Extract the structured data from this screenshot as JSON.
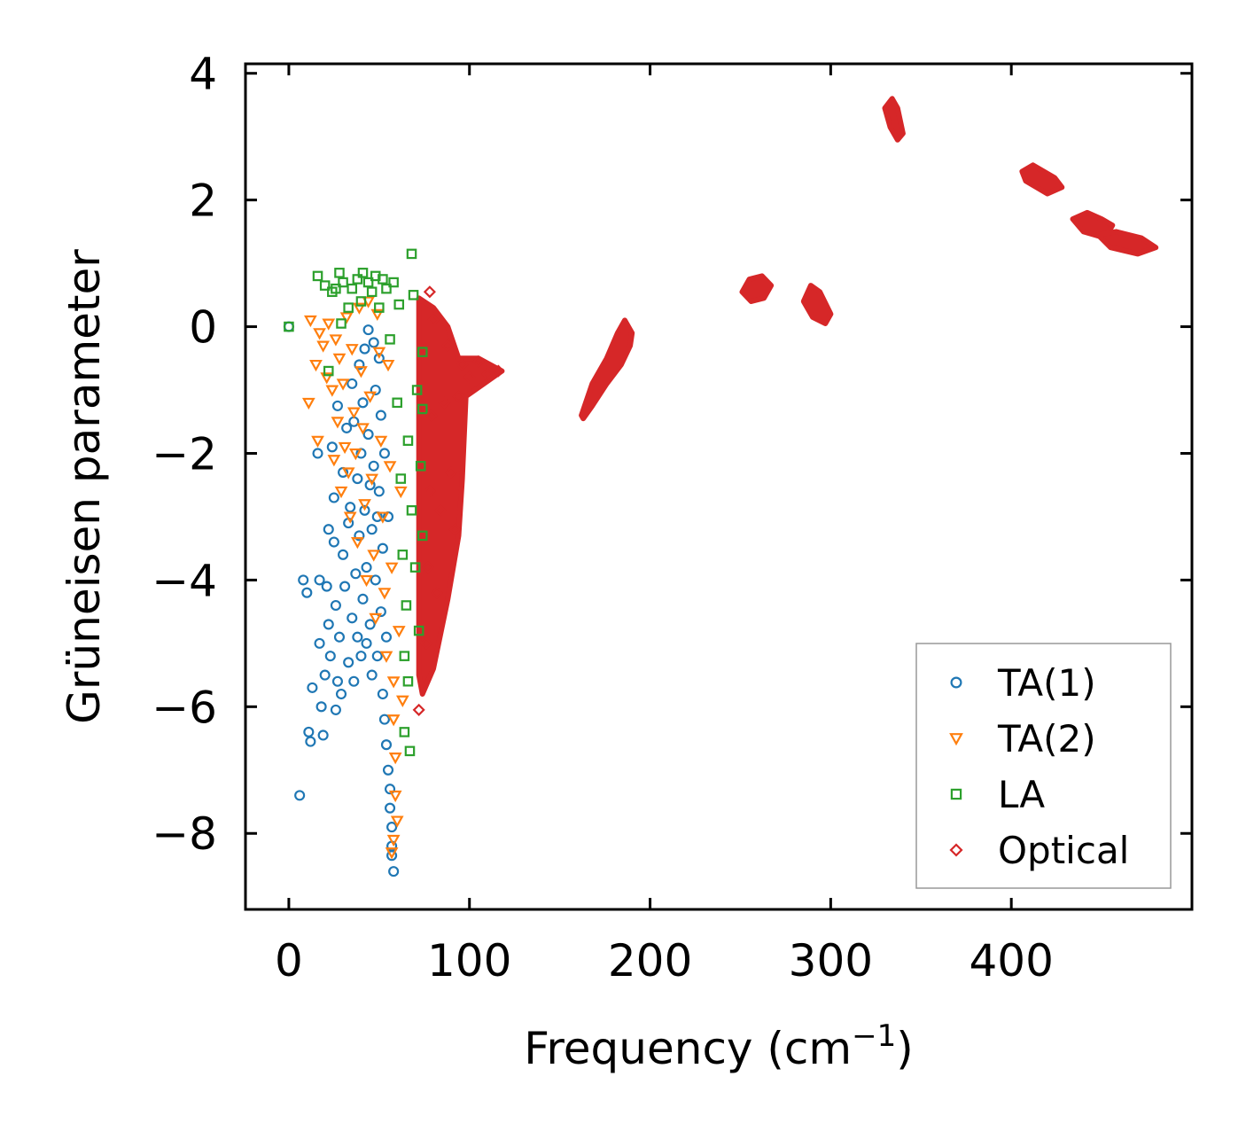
{
  "chart_data": {
    "type": "scatter",
    "title": "",
    "xlabel": "Frequency (cm",
    "xlabel_sup": "−1",
    "xlabel_tail": ")",
    "ylabel": "Grüneisen parameter",
    "xlim": [
      -24,
      500
    ],
    "ylim": [
      -9.2,
      4.15
    ],
    "xticks": [
      0,
      100,
      200,
      300,
      400
    ],
    "xtick_labels": [
      "0",
      "100",
      "200",
      "300",
      "400"
    ],
    "yticks": [
      4,
      2,
      0,
      -2,
      -4,
      -6,
      -8
    ],
    "ytick_labels": [
      "4",
      "2",
      "0",
      "−2",
      "−4",
      "−6",
      "−8"
    ],
    "legend_position": "lower-right",
    "series": [
      {
        "name": "TA(1)",
        "marker": "circle",
        "color": "#1f77b4",
        "points": [
          [
            0,
            0
          ],
          [
            6,
            -7.4
          ],
          [
            8,
            -4.0
          ],
          [
            10,
            -4.2
          ],
          [
            11,
            -6.4
          ],
          [
            12,
            -6.55
          ],
          [
            13,
            -5.7
          ],
          [
            16,
            -2.0
          ],
          [
            17,
            -4.0
          ],
          [
            17,
            -5.0
          ],
          [
            18,
            -6.0
          ],
          [
            19,
            -6.45
          ],
          [
            20,
            -5.5
          ],
          [
            21,
            -4.1
          ],
          [
            22,
            -3.2
          ],
          [
            22,
            -4.7
          ],
          [
            23,
            -5.2
          ],
          [
            24,
            -1.9
          ],
          [
            25,
            -2.7
          ],
          [
            25,
            -3.4
          ],
          [
            26,
            -4.4
          ],
          [
            26,
            -6.05
          ],
          [
            27,
            -1.25
          ],
          [
            27,
            -5.6
          ],
          [
            28,
            -4.9
          ],
          [
            29,
            -5.8
          ],
          [
            30,
            -2.3
          ],
          [
            30,
            -3.6
          ],
          [
            31,
            -4.1
          ],
          [
            32,
            -1.6
          ],
          [
            33,
            -3.1
          ],
          [
            33,
            -5.3
          ],
          [
            34,
            -2.85
          ],
          [
            35,
            -0.9
          ],
          [
            35,
            -4.6
          ],
          [
            36,
            -1.5
          ],
          [
            36,
            -5.6
          ],
          [
            37,
            -3.9
          ],
          [
            38,
            -2.4
          ],
          [
            38,
            -4.9
          ],
          [
            39,
            -0.6
          ],
          [
            39,
            -3.3
          ],
          [
            40,
            -2.0
          ],
          [
            40,
            -5.2
          ],
          [
            41,
            -1.2
          ],
          [
            41,
            -4.3
          ],
          [
            42,
            -0.35
          ],
          [
            42,
            -2.9
          ],
          [
            43,
            -3.8
          ],
          [
            43,
            -5.0
          ],
          [
            44,
            -0.05
          ],
          [
            44,
            -1.7
          ],
          [
            45,
            -2.5
          ],
          [
            45,
            -4.7
          ],
          [
            46,
            -3.2
          ],
          [
            46,
            -5.5
          ],
          [
            47,
            -0.25
          ],
          [
            47,
            -2.2
          ],
          [
            48,
            -4.0
          ],
          [
            48,
            -1.0
          ],
          [
            49,
            -3.0
          ],
          [
            49,
            -5.2
          ],
          [
            50,
            -0.5
          ],
          [
            50,
            -2.6
          ],
          [
            51,
            -4.5
          ],
          [
            51,
            -1.4
          ],
          [
            52,
            -3.5
          ],
          [
            52,
            -5.8
          ],
          [
            53,
            -2.0
          ],
          [
            53,
            -6.2
          ],
          [
            54,
            -4.9
          ],
          [
            54,
            -6.6
          ],
          [
            55,
            -3.0
          ],
          [
            55,
            -7.0
          ],
          [
            56,
            -7.3
          ],
          [
            56,
            -7.6
          ],
          [
            57,
            -7.9
          ],
          [
            57,
            -8.2
          ],
          [
            57,
            -8.35
          ],
          [
            58,
            -8.6
          ]
        ]
      },
      {
        "name": "TA(2)",
        "marker": "triangle-down",
        "color": "#ff7f0e",
        "points": [
          [
            11,
            -1.2
          ],
          [
            12,
            0.1
          ],
          [
            15,
            -0.6
          ],
          [
            16,
            -1.8
          ],
          [
            17,
            -0.1
          ],
          [
            19,
            -0.3
          ],
          [
            21,
            -0.8
          ],
          [
            22,
            0.05
          ],
          [
            24,
            -1.0
          ],
          [
            25,
            -2.1
          ],
          [
            26,
            -0.2
          ],
          [
            27,
            -1.5
          ],
          [
            28,
            -0.5
          ],
          [
            29,
            -2.6
          ],
          [
            30,
            -0.9
          ],
          [
            31,
            -1.9
          ],
          [
            32,
            0.15
          ],
          [
            33,
            -2.3
          ],
          [
            34,
            -3.0
          ],
          [
            35,
            -0.35
          ],
          [
            36,
            -1.35
          ],
          [
            37,
            -2.0
          ],
          [
            38,
            -3.4
          ],
          [
            39,
            0.3
          ],
          [
            40,
            -0.7
          ],
          [
            41,
            -1.6
          ],
          [
            42,
            -2.8
          ],
          [
            43,
            -4.0
          ],
          [
            44,
            0.4
          ],
          [
            45,
            -1.1
          ],
          [
            46,
            -2.4
          ],
          [
            47,
            -3.6
          ],
          [
            48,
            -4.6
          ],
          [
            49,
            0.2
          ],
          [
            50,
            -0.4
          ],
          [
            51,
            -1.8
          ],
          [
            52,
            -3.0
          ],
          [
            53,
            -4.2
          ],
          [
            54,
            -5.2
          ],
          [
            55,
            -0.6
          ],
          [
            56,
            -2.2
          ],
          [
            57,
            -3.8
          ],
          [
            58,
            -5.6
          ],
          [
            58,
            -6.2
          ],
          [
            59,
            -6.8
          ],
          [
            59,
            -7.4
          ],
          [
            60,
            -7.8
          ],
          [
            58,
            -8.1
          ],
          [
            57,
            -8.3
          ],
          [
            61,
            -4.8
          ],
          [
            62,
            -2.6
          ],
          [
            63,
            -5.9
          ]
        ]
      },
      {
        "name": "LA",
        "marker": "square",
        "color": "#2ca02c",
        "points": [
          [
            0,
            0
          ],
          [
            16,
            0.8
          ],
          [
            20,
            0.65
          ],
          [
            22,
            -0.7
          ],
          [
            24,
            0.55
          ],
          [
            26,
            0.6
          ],
          [
            28,
            0.85
          ],
          [
            29,
            0.05
          ],
          [
            30,
            0.7
          ],
          [
            33,
            0.3
          ],
          [
            35,
            0.6
          ],
          [
            38,
            0.75
          ],
          [
            40,
            0.4
          ],
          [
            41,
            0.85
          ],
          [
            44,
            0.7
          ],
          [
            46,
            0.55
          ],
          [
            48,
            0.8
          ],
          [
            50,
            0.3
          ],
          [
            52,
            0.75
          ],
          [
            54,
            0.6
          ],
          [
            56,
            -0.2
          ],
          [
            58,
            0.7
          ],
          [
            60,
            -1.2
          ],
          [
            61,
            0.35
          ],
          [
            62,
            -2.4
          ],
          [
            63,
            -3.6
          ],
          [
            64,
            -5.2
          ],
          [
            64,
            -6.4
          ],
          [
            65,
            -4.4
          ],
          [
            66,
            -1.8
          ],
          [
            66,
            -5.6
          ],
          [
            67,
            -6.7
          ],
          [
            68,
            1.15
          ],
          [
            68,
            -2.9
          ],
          [
            69,
            0.5
          ],
          [
            70,
            -3.8
          ],
          [
            71,
            -1.0
          ],
          [
            72,
            -4.8
          ],
          [
            73,
            -2.2
          ],
          [
            74,
            -0.4
          ],
          [
            74,
            -3.3
          ],
          [
            74,
            -1.3
          ]
        ]
      },
      {
        "name": "Optical",
        "marker": "diamond",
        "color": "#d62728",
        "points": [
          [
            78,
            0.55
          ],
          [
            72,
            -6.05
          ],
          [
            76,
            -5.0
          ],
          [
            77,
            -3.8
          ],
          [
            78,
            -2.6
          ],
          [
            79,
            -1.4
          ],
          [
            80,
            0.1
          ],
          [
            82,
            -4.2
          ],
          [
            84,
            -2.9
          ],
          [
            86,
            -1.2
          ],
          [
            88,
            -0.3
          ],
          [
            90,
            -2.3
          ],
          [
            92,
            -3.2
          ],
          [
            94,
            -1.1
          ],
          [
            96,
            -0.6
          ],
          [
            100,
            -0.8
          ],
          [
            105,
            -0.55
          ],
          [
            110,
            -0.75
          ],
          [
            116,
            -0.7
          ]
        ]
      }
    ],
    "optical_clusters": [
      {
        "description": "dense band",
        "polygon": [
          [
            72,
            0.45
          ],
          [
            80,
            0.3
          ],
          [
            88,
            0.0
          ],
          [
            94,
            -0.5
          ],
          [
            105,
            -0.5
          ],
          [
            118,
            -0.7
          ],
          [
            108,
            -0.9
          ],
          [
            98,
            -1.1
          ],
          [
            96,
            -2.4
          ],
          [
            94,
            -3.3
          ],
          [
            88,
            -4.3
          ],
          [
            80,
            -5.4
          ],
          [
            74,
            -5.8
          ],
          [
            72,
            -5.5
          ]
        ]
      },
      {
        "description": "cluster near 175 cm-1",
        "polygon": [
          [
            162,
            -1.4
          ],
          [
            168,
            -0.9
          ],
          [
            176,
            -0.5
          ],
          [
            182,
            -0.1
          ],
          [
            186,
            0.1
          ],
          [
            190,
            -0.1
          ],
          [
            189,
            -0.3
          ],
          [
            184,
            -0.6
          ],
          [
            176,
            -0.9
          ],
          [
            168,
            -1.25
          ],
          [
            163,
            -1.45
          ]
        ]
      },
      {
        "description": "cluster near 258 cm-1",
        "polygon": [
          [
            251,
            0.55
          ],
          [
            255,
            0.75
          ],
          [
            262,
            0.8
          ],
          [
            267,
            0.65
          ],
          [
            263,
            0.45
          ],
          [
            256,
            0.4
          ]
        ]
      },
      {
        "description": "cluster near 293 cm-1",
        "polygon": [
          [
            285,
            0.4
          ],
          [
            289,
            0.65
          ],
          [
            294,
            0.55
          ],
          [
            300,
            0.2
          ],
          [
            297,
            0.05
          ],
          [
            290,
            0.15
          ]
        ]
      },
      {
        "description": "cluster near 333 cm-1",
        "polygon": [
          [
            330,
            3.45
          ],
          [
            334,
            3.6
          ],
          [
            337,
            3.45
          ],
          [
            340,
            3.05
          ],
          [
            337,
            2.95
          ],
          [
            333,
            3.15
          ]
        ]
      },
      {
        "description": "cluster near 415 cm-1",
        "polygon": [
          [
            406,
            2.45
          ],
          [
            412,
            2.55
          ],
          [
            424,
            2.35
          ],
          [
            428,
            2.2
          ],
          [
            420,
            2.1
          ],
          [
            408,
            2.3
          ]
        ]
      },
      {
        "description": "cluster near 445 cm-1",
        "polygon": [
          [
            434,
            1.7
          ],
          [
            442,
            1.8
          ],
          [
            450,
            1.7
          ],
          [
            456,
            1.6
          ],
          [
            452,
            1.4
          ],
          [
            440,
            1.5
          ]
        ]
      },
      {
        "description": "cluster near 465 cm-1",
        "polygon": [
          [
            448,
            1.45
          ],
          [
            458,
            1.5
          ],
          [
            472,
            1.4
          ],
          [
            480,
            1.25
          ],
          [
            470,
            1.15
          ],
          [
            455,
            1.25
          ]
        ]
      }
    ]
  }
}
